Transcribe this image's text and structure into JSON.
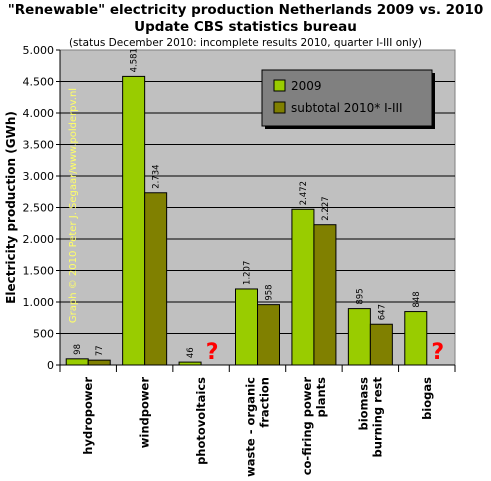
{
  "chart_data": {
    "type": "bar",
    "title": "\"Renewable\" electricity production Netherlands 2009 vs. 2010",
    "title2": "Update CBS statistics bureau",
    "subtitle": "(status December 2010: incomplete results 2010, quarter I-III only)",
    "ylabel": "Electricity production (GWh)",
    "xlabel": "",
    "ylim": [
      0,
      5000
    ],
    "yticks": [
      0,
      500,
      1000,
      1500,
      2000,
      2500,
      3000,
      3500,
      4000,
      4500,
      5000
    ],
    "ytick_labels": [
      "0",
      "500",
      "1.000",
      "1.500",
      "2.000",
      "2.500",
      "3.000",
      "3.500",
      "4.000",
      "4.500",
      "5.000"
    ],
    "categories": [
      "hydropower",
      "windpower",
      "photovoltaics",
      "waste - organic fraction",
      "co-firing power plants",
      "biomass burning rest",
      "biogas"
    ],
    "category_lines": [
      [
        "hydropower"
      ],
      [
        "windpower"
      ],
      [
        "photovoltaics"
      ],
      [
        "waste - organic",
        "fraction"
      ],
      [
        "co-firing power",
        "plants"
      ],
      [
        "biomass",
        "burning rest"
      ],
      [
        "biogas"
      ]
    ],
    "series": [
      {
        "name": "2009",
        "color": "#99cc00",
        "values": [
          98,
          4581,
          46,
          1207,
          2472,
          895,
          848
        ],
        "labels": [
          "98",
          "4.581",
          "46",
          "1.207",
          "2.472",
          "895",
          "848"
        ]
      },
      {
        "name": "subtotal 2010* I-III",
        "color": "#808000",
        "values": [
          77,
          2734,
          null,
          958,
          2227,
          647,
          null
        ],
        "labels": [
          "77",
          "2.734",
          "",
          "958",
          "2.227",
          "647",
          ""
        ]
      }
    ],
    "missing_marker": "?",
    "legend_position": "top-right",
    "grid": true,
    "plot_background": "#c0c0c0",
    "watermark": "Graph © 2010 Peter J. Segaar/www.polderpv.nl"
  }
}
